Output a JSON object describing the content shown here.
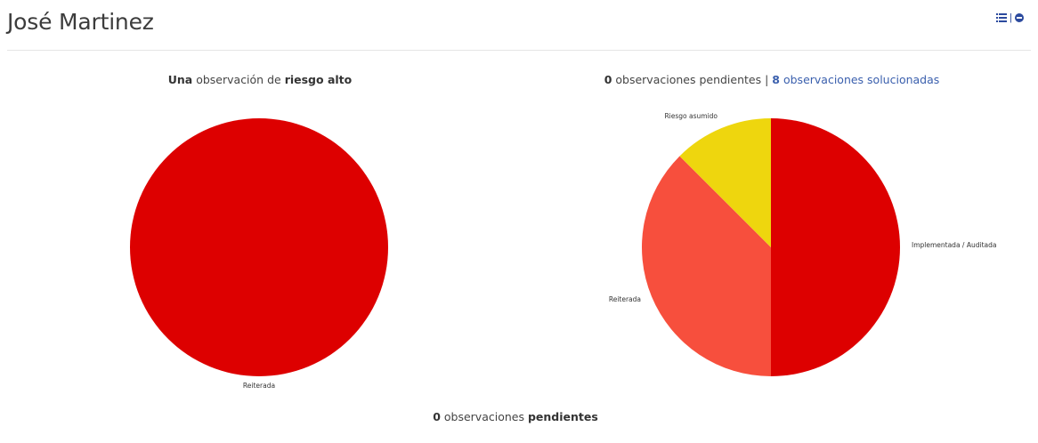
{
  "header": {
    "title": "José Martinez",
    "separator": "|",
    "icons": [
      "list-icon",
      "minus-circle-icon"
    ],
    "accent_color": "#2c4a9e"
  },
  "captions": {
    "left": {
      "count": "Una",
      "text": " observación de ",
      "risk": "riesgo alto"
    },
    "right": {
      "pending_count": "0",
      "pending_text": " observaciones pendientes | ",
      "solved_count": "8",
      "solved_text": " observaciones solucionadas"
    },
    "bottom": {
      "count": "0",
      "text": " observaciones ",
      "emphasis": "pendientes"
    }
  },
  "chart_data": [
    {
      "type": "pie",
      "slices": [
        {
          "label": "Reiterada",
          "value": 1,
          "color": "#dd0000"
        }
      ]
    },
    {
      "type": "pie",
      "slices": [
        {
          "label": "Implementada / Auditada",
          "value": 4,
          "color": "#dd0000"
        },
        {
          "label": "Reiterada",
          "value": 3,
          "color": "#f74f3d"
        },
        {
          "label": "Riesgo asumido",
          "value": 1,
          "color": "#eed60e"
        }
      ]
    }
  ]
}
